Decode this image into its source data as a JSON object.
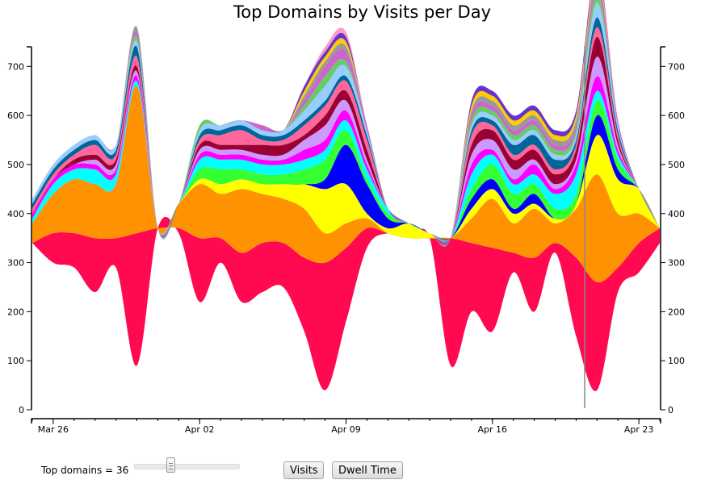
{
  "chart_data": {
    "type": "area",
    "subtype": "streamgraph",
    "title": "Top Domains by Visits per Day",
    "xlabel": "",
    "ylabel": "",
    "x_ticks": [
      "Mar 26",
      "Apr 02",
      "Apr 09",
      "Apr 16",
      "Apr 23"
    ],
    "y_ticks": [
      0,
      100,
      200,
      300,
      400,
      500,
      600,
      700
    ],
    "ylim": [
      0,
      740
    ],
    "x_range": [
      "Mar 25",
      "Apr 24"
    ],
    "highlight_date": "Apr 21",
    "dates": [
      "Mar 25",
      "Mar 26",
      "Mar 27",
      "Mar 28",
      "Mar 29",
      "Mar 30",
      "Mar 31",
      "Apr 01",
      "Apr 02",
      "Apr 03",
      "Apr 04",
      "Apr 05",
      "Apr 06",
      "Apr 07",
      "Apr 08",
      "Apr 09",
      "Apr 10",
      "Apr 11",
      "Apr 12",
      "Apr 13",
      "Apr 14",
      "Apr 15",
      "Apr 16",
      "Apr 17",
      "Apr 18",
      "Apr 19",
      "Apr 20",
      "Apr 21",
      "Apr 22",
      "Apr 23",
      "Apr 24"
    ],
    "baseline": [
      340,
      300,
      290,
      240,
      290,
      90,
      370,
      360,
      220,
      300,
      220,
      240,
      250,
      160,
      40,
      180,
      330,
      360,
      350,
      350,
      90,
      200,
      160,
      280,
      200,
      320,
      150,
      40,
      240,
      280,
      340
    ],
    "series": [
      {
        "color": "#ff0a50",
        "values": [
          0,
          0,
          0,
          0,
          0,
          0,
          0,
          0,
          0,
          0,
          0,
          0,
          0,
          0,
          0,
          0,
          0,
          0,
          0,
          0,
          0,
          0,
          0,
          0,
          0,
          0,
          0,
          0,
          0,
          0,
          0
        ]
      },
      {
        "color": "#ff0a50",
        "values": [
          0,
          60,
          70,
          110,
          60,
          270,
          0,
          10,
          130,
          50,
          100,
          100,
          90,
          150,
          260,
          150,
          40,
          0,
          0,
          0,
          260,
          140,
          170,
          40,
          110,
          20,
          160,
          220,
          50,
          60,
          30
        ]
      },
      {
        "color": "#ff9200",
        "values": [
          40,
          80,
          110,
          110,
          110,
          300,
          0,
          50,
          110,
          90,
          130,
          100,
          90,
          100,
          60,
          50,
          20,
          0,
          0,
          0,
          0,
          50,
          100,
          60,
          100,
          40,
          100,
          220,
          110,
          60,
          0
        ]
      },
      {
        "color": "#ffff00",
        "values": [
          0,
          0,
          0,
          0,
          0,
          0,
          0,
          0,
          10,
          20,
          20,
          20,
          30,
          50,
          90,
          80,
          10,
          10,
          30,
          10,
          0,
          20,
          20,
          20,
          10,
          10,
          10,
          80,
          70,
          50,
          0
        ]
      },
      {
        "color": "#0000ff",
        "values": [
          0,
          0,
          0,
          0,
          0,
          0,
          0,
          0,
          0,
          0,
          0,
          0,
          0,
          0,
          20,
          80,
          60,
          20,
          0,
          0,
          0,
          20,
          20,
          10,
          20,
          0,
          0,
          40,
          20,
          0,
          0
        ]
      },
      {
        "color": "#33ff33",
        "values": [
          0,
          0,
          0,
          0,
          0,
          0,
          0,
          0,
          20,
          30,
          20,
          20,
          20,
          30,
          40,
          30,
          10,
          10,
          0,
          0,
          0,
          20,
          30,
          30,
          20,
          20,
          20,
          30,
          20,
          0,
          0
        ]
      },
      {
        "color": "#00ffff",
        "values": [
          10,
          20,
          20,
          30,
          20,
          10,
          0,
          0,
          20,
          20,
          20,
          20,
          20,
          20,
          20,
          20,
          20,
          10,
          0,
          0,
          0,
          30,
          20,
          20,
          20,
          30,
          40,
          20,
          10,
          0,
          0
        ]
      },
      {
        "color": "#ff00ff",
        "values": [
          10,
          10,
          10,
          10,
          10,
          10,
          0,
          0,
          10,
          10,
          10,
          10,
          10,
          20,
          20,
          20,
          10,
          0,
          0,
          0,
          0,
          20,
          10,
          10,
          20,
          10,
          20,
          30,
          10,
          0,
          0
        ]
      },
      {
        "color": "#cc99ff",
        "values": [
          0,
          0,
          0,
          10,
          10,
          10,
          0,
          0,
          10,
          10,
          10,
          10,
          10,
          20,
          30,
          20,
          10,
          0,
          0,
          0,
          0,
          20,
          20,
          20,
          10,
          10,
          10,
          40,
          10,
          0,
          0
        ]
      },
      {
        "color": "#990033",
        "values": [
          0,
          0,
          10,
          10,
          10,
          10,
          0,
          0,
          10,
          10,
          10,
          20,
          20,
          10,
          20,
          20,
          20,
          0,
          0,
          0,
          0,
          20,
          20,
          20,
          20,
          20,
          20,
          40,
          10,
          0,
          0
        ]
      },
      {
        "color": "#ff6699",
        "values": [
          10,
          10,
          10,
          20,
          10,
          20,
          0,
          0,
          10,
          20,
          30,
          10,
          10,
          20,
          20,
          20,
          20,
          0,
          0,
          0,
          0,
          20,
          10,
          10,
          10,
          10,
          10,
          20,
          10,
          0,
          0
        ]
      },
      {
        "color": "#006699",
        "values": [
          10,
          10,
          10,
          10,
          10,
          20,
          0,
          0,
          10,
          10,
          10,
          10,
          10,
          10,
          10,
          10,
          10,
          0,
          0,
          0,
          0,
          10,
          10,
          20,
          20,
          20,
          10,
          20,
          10,
          0,
          0
        ]
      },
      {
        "color": "#99ccff",
        "values": [
          10,
          10,
          10,
          10,
          10,
          10,
          0,
          0,
          10,
          10,
          10,
          10,
          10,
          20,
          30,
          20,
          10,
          0,
          0,
          0,
          0,
          10,
          10,
          10,
          10,
          10,
          10,
          30,
          10,
          0,
          0
        ]
      },
      {
        "color": "#66cc66",
        "values": [
          0,
          0,
          0,
          0,
          0,
          10,
          0,
          0,
          10,
          0,
          0,
          0,
          0,
          10,
          20,
          10,
          0,
          0,
          0,
          0,
          0,
          10,
          10,
          10,
          10,
          10,
          10,
          20,
          0,
          0,
          0
        ]
      },
      {
        "color": "#cc66cc",
        "values": [
          0,
          0,
          0,
          0,
          0,
          10,
          0,
          0,
          0,
          0,
          0,
          10,
          0,
          10,
          20,
          20,
          10,
          0,
          0,
          0,
          0,
          10,
          10,
          10,
          10,
          10,
          10,
          20,
          10,
          0,
          0
        ]
      },
      {
        "color": "#999999",
        "values": [
          0,
          0,
          0,
          0,
          0,
          10,
          0,
          0,
          0,
          0,
          0,
          0,
          0,
          10,
          10,
          10,
          0,
          0,
          0,
          0,
          0,
          10,
          10,
          10,
          10,
          10,
          10,
          10,
          0,
          0,
          0
        ]
      },
      {
        "color": "#ffcc00",
        "values": [
          0,
          0,
          0,
          0,
          0,
          0,
          0,
          0,
          0,
          0,
          0,
          0,
          0,
          10,
          10,
          10,
          0,
          0,
          0,
          0,
          0,
          10,
          10,
          10,
          10,
          10,
          10,
          10,
          0,
          0,
          0
        ]
      },
      {
        "color": "#6633cc",
        "values": [
          0,
          0,
          0,
          0,
          0,
          0,
          0,
          0,
          0,
          0,
          0,
          0,
          0,
          10,
          10,
          10,
          0,
          0,
          0,
          0,
          0,
          10,
          10,
          10,
          10,
          10,
          10,
          10,
          0,
          0,
          0
        ]
      },
      {
        "color": "#ff99cc",
        "values": [
          0,
          0,
          0,
          0,
          0,
          0,
          0,
          0,
          0,
          0,
          0,
          0,
          0,
          0,
          10,
          10,
          0,
          0,
          0,
          0,
          0,
          0,
          0,
          0,
          0,
          0,
          0,
          10,
          0,
          0,
          0
        ]
      }
    ]
  },
  "controls": {
    "top_domains_label": "Top domains = 36",
    "slider_value": 36,
    "visits_label": "Visits",
    "dwell_label": "Dwell Time"
  }
}
